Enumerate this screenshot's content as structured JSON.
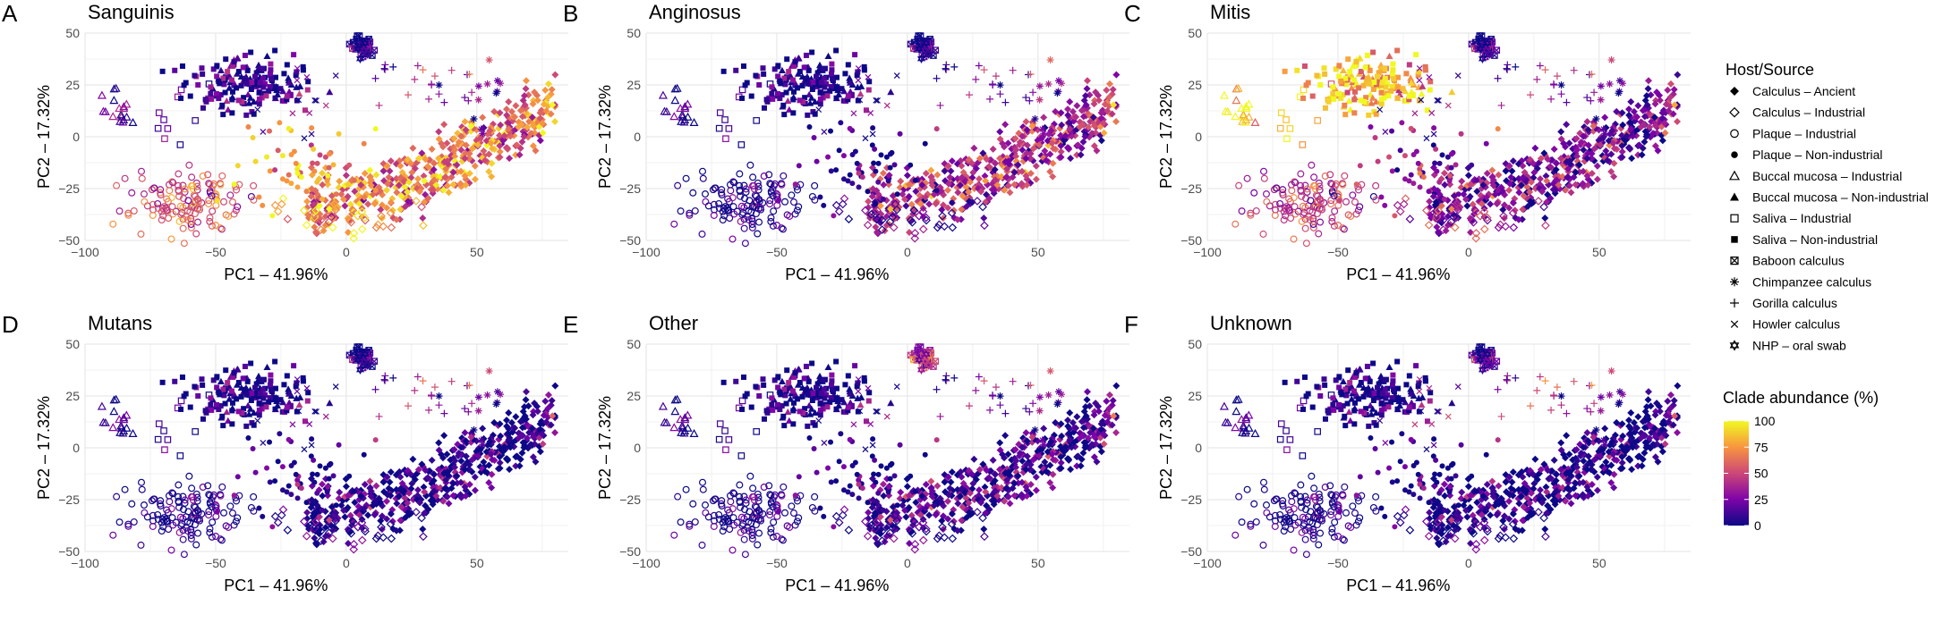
{
  "figure": {
    "legend_shape_title": "Host/Source",
    "legend_color_title": "Clade abundance (%)",
    "colorbar_ticks": [
      "100",
      "75",
      "50",
      "25",
      "0"
    ],
    "colors": {
      "low": "#0d0887",
      "mid_low": "#7e03a8",
      "mid": "#cc4778",
      "mid_high": "#f89540",
      "high": "#f0f921"
    }
  },
  "shape_legend": [
    {
      "label": "Calculus – Ancient",
      "shape": "filled-diamond"
    },
    {
      "label": "Calculus – Industrial",
      "shape": "open-diamond"
    },
    {
      "label": "Plaque – Industrial",
      "shape": "open-circle"
    },
    {
      "label": "Plaque – Non-industrial",
      "shape": "filled-circle"
    },
    {
      "label": "Buccal mucosa – Industrial",
      "shape": "open-triangle"
    },
    {
      "label": "Buccal mucosa – Non-industrial",
      "shape": "filled-triangle"
    },
    {
      "label": "Saliva – Industrial",
      "shape": "open-square"
    },
    {
      "label": "Saliva – Non-industrial",
      "shape": "filled-square"
    },
    {
      "label": "Baboon calculus",
      "shape": "boxed-x"
    },
    {
      "label": "Chimpanzee calculus",
      "shape": "asterisk"
    },
    {
      "label": "Gorilla calculus",
      "shape": "plus"
    },
    {
      "label": "Howler calculus",
      "shape": "cross"
    },
    {
      "label": "NHP – oral swab",
      "shape": "star"
    }
  ],
  "chart_data": [
    {
      "panel_letter": "A",
      "title": "Sanguinis",
      "type": "scatter",
      "xlabel": "PC1 – 41.96%",
      "ylabel": "PC2 – 17.32%",
      "xlim": [
        -100,
        85
      ],
      "ylim": [
        -50,
        50
      ],
      "xticks": [
        "−100",
        "−50",
        "0",
        "50"
      ],
      "yticks": [
        "50",
        "25",
        "0",
        "−25",
        "−50"
      ],
      "color_by": "Clade abundance (%)",
      "abundance": {
        "calculus_ancient": 65,
        "calculus_industrial": 75,
        "plaque_industrial": 55,
        "plaque_nonindustrial": 75,
        "buccal_industrial": 15,
        "buccal_nonindustrial": 8,
        "saliva_industrial": 10,
        "saliva_nonindustrial": 8,
        "baboon": 10,
        "chimpanzee": 25,
        "gorilla": 30,
        "howler": 20,
        "nhp_swab": 12
      }
    },
    {
      "panel_letter": "B",
      "title": "Anginosus",
      "type": "scatter",
      "xlabel": "PC1 – 41.96%",
      "ylabel": "PC2 – 17.32%",
      "xlim": [
        -100,
        85
      ],
      "ylim": [
        -50,
        50
      ],
      "xticks": [
        "−100",
        "−50",
        "0",
        "50"
      ],
      "yticks": [
        "50",
        "25",
        "0",
        "−25",
        "−50"
      ],
      "color_by": "Clade abundance (%)",
      "abundance": {
        "calculus_ancient": 40,
        "calculus_industrial": 8,
        "plaque_industrial": 3,
        "plaque_nonindustrial": 5,
        "buccal_industrial": 3,
        "buccal_nonindustrial": 3,
        "saliva_industrial": 3,
        "saliva_nonindustrial": 3,
        "baboon": 10,
        "chimpanzee": 30,
        "gorilla": 20,
        "howler": 15,
        "nhp_swab": 10
      }
    },
    {
      "panel_letter": "C",
      "title": "Mitis",
      "type": "scatter",
      "xlabel": "PC1 – 41.96%",
      "ylabel": "PC2 – 17.32%",
      "xlim": [
        -100,
        85
      ],
      "ylim": [
        -50,
        50
      ],
      "xticks": [
        "−100",
        "−50",
        "0",
        "50"
      ],
      "yticks": [
        "50",
        "25",
        "0",
        "−25",
        "−50"
      ],
      "color_by": "Clade abundance (%)",
      "abundance": {
        "calculus_ancient": 25,
        "calculus_industrial": 35,
        "plaque_industrial": 45,
        "plaque_nonindustrial": 30,
        "buccal_industrial": 90,
        "buccal_nonindustrial": 85,
        "saliva_industrial": 80,
        "saliva_nonindustrial": 85,
        "baboon": 15,
        "chimpanzee": 20,
        "gorilla": 25,
        "howler": 20,
        "nhp_swab": 15
      }
    },
    {
      "panel_letter": "D",
      "title": "Mutans",
      "type": "scatter",
      "xlabel": "PC1 – 41.96%",
      "ylabel": "PC2 – 17.32%",
      "xlim": [
        -100,
        85
      ],
      "ylim": [
        -50,
        50
      ],
      "xticks": [
        "−100",
        "−50",
        "0",
        "50"
      ],
      "yticks": [
        "50",
        "25",
        "0",
        "−25",
        "−50"
      ],
      "color_by": "Clade abundance (%)",
      "abundance": {
        "calculus_ancient": 5,
        "calculus_industrial": 3,
        "plaque_industrial": 2,
        "plaque_nonindustrial": 5,
        "buccal_industrial": 2,
        "buccal_nonindustrial": 2,
        "saliva_industrial": 2,
        "saliva_nonindustrial": 2,
        "baboon": 10,
        "chimpanzee": 20,
        "gorilla": 30,
        "howler": 10,
        "nhp_swab": 8
      }
    },
    {
      "panel_letter": "E",
      "title": "Other",
      "type": "scatter",
      "xlabel": "PC1 – 41.96%",
      "ylabel": "PC2 – 17.32%",
      "xlim": [
        -100,
        85
      ],
      "ylim": [
        -50,
        50
      ],
      "xticks": [
        "−100",
        "−50",
        "0",
        "50"
      ],
      "yticks": [
        "50",
        "25",
        "0",
        "−25",
        "−50"
      ],
      "color_by": "Clade abundance (%)",
      "abundance": {
        "calculus_ancient": 12,
        "calculus_industrial": 3,
        "plaque_industrial": 2,
        "plaque_nonindustrial": 3,
        "buccal_industrial": 2,
        "buccal_nonindustrial": 2,
        "saliva_industrial": 2,
        "saliva_nonindustrial": 2,
        "baboon": 50,
        "chimpanzee": 25,
        "gorilla": 20,
        "howler": 15,
        "nhp_swab": 45
      }
    },
    {
      "panel_letter": "F",
      "title": "Unknown",
      "type": "scatter",
      "xlabel": "PC1 – 41.96%",
      "ylabel": "PC2 – 17.32%",
      "xlim": [
        -100,
        85
      ],
      "ylim": [
        -50,
        50
      ],
      "xticks": [
        "−100",
        "−50",
        "0",
        "50"
      ],
      "yticks": [
        "50",
        "25",
        "0",
        "−25",
        "−50"
      ],
      "color_by": "Clade abundance (%)",
      "abundance": {
        "calculus_ancient": 3,
        "calculus_industrial": 2,
        "plaque_industrial": 2,
        "plaque_nonindustrial": 2,
        "buccal_industrial": 2,
        "buccal_nonindustrial": 2,
        "saliva_industrial": 2,
        "saliva_nonindustrial": 2,
        "baboon": 20,
        "chimpanzee": 20,
        "gorilla": 40,
        "howler": 30,
        "nhp_swab": 20
      }
    }
  ]
}
